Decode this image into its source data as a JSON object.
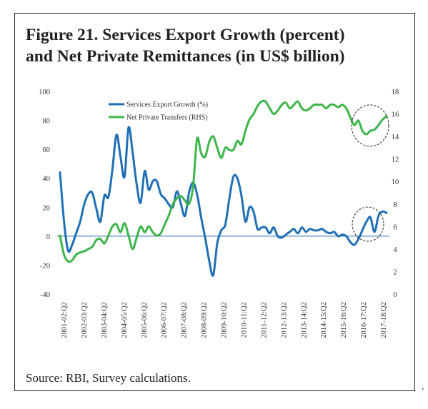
{
  "chart_data": {
    "type": "line",
    "title_line1": "Figure 21. Services Export Growth (percent)",
    "title_line2": "and Net Private Remittances (in US$ billion)",
    "source": "Source: RBI, Survey calculations.",
    "stray_mark": ",",
    "x_tick_labels": [
      "2001-02:Q2",
      "2002-03:Q2",
      "2003-04:Q2",
      "2004-05:Q2",
      "2005-06:Q2",
      "2006-07:Q2",
      "2007-08:Q2",
      "2008-09:Q2",
      "2009-10:Q2",
      "2010-11:Q2",
      "2011-12:Q2",
      "2012-13:Q2",
      "2013-14:Q2",
      "2014-15:Q2",
      "2015-16:Q2",
      "2016-17:Q2",
      "2017-18:Q2"
    ],
    "left_axis": {
      "ylim": [
        -40,
        100
      ],
      "ticks": [
        "100",
        "80",
        "60",
        "40",
        "20",
        "0",
        "-20",
        "-40"
      ]
    },
    "right_axis": {
      "ylim": [
        0,
        18
      ],
      "ticks": [
        "18",
        "16",
        "14",
        "12",
        "10",
        "8",
        "6",
        "4",
        "2",
        "0"
      ]
    },
    "series": [
      {
        "name": "Services Export Growth (%)",
        "axis": "left",
        "color": "#1f6fb5",
        "values": [
          44,
          10,
          -10,
          -6,
          2,
          10,
          22,
          29,
          30,
          19,
          10,
          28,
          27,
          46,
          70,
          55,
          41,
          75,
          58,
          36,
          23,
          45,
          32,
          38,
          38,
          29,
          26,
          22,
          20,
          31,
          22,
          14,
          30,
          37,
          29,
          13,
          -1,
          -17,
          -27,
          -5,
          4,
          8,
          26,
          41,
          40,
          28,
          10,
          20,
          17,
          5,
          6,
          6,
          2,
          6,
          0,
          -1,
          1,
          3,
          5,
          2,
          6,
          3,
          5,
          4,
          4,
          5,
          3,
          2,
          3,
          0,
          1,
          0,
          -4,
          -6,
          -2,
          4,
          10,
          13,
          3,
          14,
          17,
          16
        ]
      },
      {
        "name": "Net Private Transfers (RHS)",
        "axis": "right",
        "color": "#3db54a",
        "values": [
          5.2,
          3.5,
          2.9,
          3.0,
          3.5,
          3.7,
          3.8,
          4.0,
          4.2,
          4.8,
          4.9,
          4.5,
          5.2,
          6.0,
          6.2,
          5.5,
          6.3,
          5.2,
          4.0,
          5.0,
          6.0,
          5.5,
          6.0,
          5.5,
          5.2,
          5.4,
          6.2,
          7.0,
          8.0,
          8.5,
          8.7,
          8.3,
          8.0,
          9.5,
          13.8,
          12.5,
          12.2,
          13.5,
          14.0,
          13.0,
          12.1,
          13.0,
          12.8,
          12.8,
          13.6,
          13.3,
          14.5,
          15.5,
          16.0,
          16.7,
          17.1,
          17.1,
          16.5,
          16.0,
          16.3,
          16.8,
          17.0,
          16.5,
          16.8,
          17.1,
          16.5,
          16.3,
          16.5,
          16.8,
          16.8,
          16.8,
          16.5,
          16.8,
          16.8,
          16.6,
          16.8,
          16.5,
          15.7,
          15.0,
          15.4,
          14.5,
          14.2,
          14.5,
          14.6,
          15.0,
          15.5,
          15.8
        ]
      }
    ],
    "annotations": [
      "circle around recent Net Private Transfers values",
      "circle around recent Services Export Growth values"
    ]
  }
}
